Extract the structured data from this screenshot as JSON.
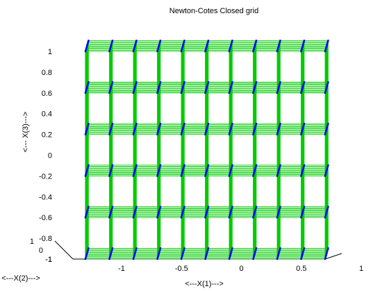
{
  "chart_data": {
    "type": "scatter3d",
    "title": "Newton-Cotes Closed grid",
    "xlabel": "<---X(1)--->",
    "ylabel": "<---X(2)--->",
    "zlabel": "<--- X(3)--->",
    "xlim": [
      -1,
      1
    ],
    "ylim": [
      -1,
      1
    ],
    "zlim": [
      -1,
      1
    ],
    "x_ticks": [
      -1,
      -0.5,
      0,
      0.5,
      1
    ],
    "x_tick_labels": [
      "-1",
      "-0.5",
      "0",
      "0.5",
      "1"
    ],
    "y_ticks": [
      -1,
      0,
      1
    ],
    "y_tick_labels": [
      "-1",
      "0",
      "1"
    ],
    "z_ticks": [
      -1,
      -0.8,
      -0.6,
      -0.4,
      -0.2,
      0,
      0.2,
      0.4,
      0.6,
      0.8,
      1
    ],
    "z_tick_labels": [
      "-1",
      "-0.8",
      "-0.6",
      "-0.4",
      "-0.2",
      "0",
      "0.2",
      "0.4",
      "0.6",
      "0.8",
      "1"
    ],
    "grid": {
      "x1_values": [
        -1,
        -0.8,
        -0.6,
        -0.4,
        -0.2,
        0,
        0.2,
        0.4,
        0.6,
        0.8,
        1
      ],
      "x2_values": [
        -1,
        -0.8,
        -0.6,
        -0.4,
        -0.2,
        0,
        0.2,
        0.4,
        0.6,
        0.8,
        1
      ],
      "x3_values": [
        -1,
        -0.6,
        -0.2,
        0.2,
        0.6,
        1
      ]
    },
    "point_color": "#0000ff",
    "line_color": "#00cc00",
    "axis_color": "#000000"
  }
}
